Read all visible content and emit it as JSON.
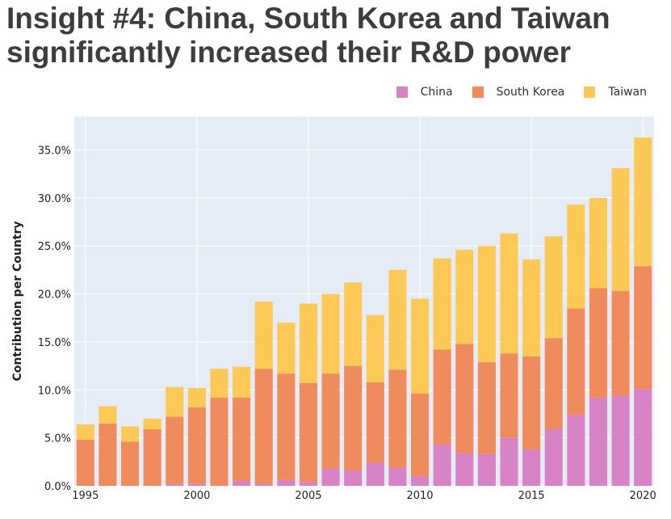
{
  "title_line1": "Insight #4: China, South Korea and Taiwan",
  "title_line2": "significantly increased their R&D power",
  "chart_data": {
    "type": "bar",
    "stacked": true,
    "x": [
      1995,
      1996,
      1997,
      1998,
      1999,
      2000,
      2001,
      2002,
      2003,
      2004,
      2005,
      2006,
      2007,
      2008,
      2009,
      2010,
      2011,
      2012,
      2013,
      2014,
      2015,
      2016,
      2017,
      2018,
      2019,
      2020
    ],
    "series": [
      {
        "name": "China",
        "color": "#d783c6",
        "values": [
          0.0,
          0.0,
          0.0,
          0.0,
          0.2,
          0.2,
          0.0,
          0.5,
          0.2,
          0.6,
          0.4,
          1.8,
          1.6,
          2.4,
          1.9,
          1.0,
          4.3,
          3.4,
          3.3,
          5.0,
          3.8,
          5.9,
          7.4,
          9.2,
          9.4,
          10.1
        ]
      },
      {
        "name": "South Korea",
        "color": "#f08b5d",
        "values": [
          4.8,
          6.5,
          4.6,
          5.9,
          7.0,
          8.0,
          9.2,
          8.7,
          12.0,
          11.1,
          10.3,
          9.9,
          10.9,
          8.4,
          10.2,
          8.6,
          9.9,
          11.4,
          9.6,
          8.8,
          9.7,
          9.5,
          11.1,
          11.4,
          10.9,
          12.8
        ]
      },
      {
        "name": "Taiwan",
        "color": "#fdc956",
        "values": [
          1.6,
          1.8,
          1.6,
          1.1,
          3.1,
          2.0,
          3.0,
          3.2,
          7.0,
          5.3,
          8.3,
          8.3,
          8.7,
          7.0,
          10.4,
          9.9,
          9.5,
          9.8,
          12.1,
          12.5,
          10.1,
          10.6,
          10.8,
          9.4,
          12.8,
          13.4
        ]
      }
    ],
    "ylabel": "Contribution per Country",
    "ylim": [
      0,
      38.5
    ],
    "y_ticks": [
      "0.0%",
      "5.0%",
      "10.0%",
      "15.0%",
      "20.0%",
      "25.0%",
      "30.0%",
      "35.0%"
    ],
    "x_ticks": [
      "1995",
      "2000",
      "2005",
      "2010",
      "2015",
      "2020"
    ],
    "legend_position": "top-right",
    "grid": true,
    "plot_background": "#e5ecf6"
  }
}
